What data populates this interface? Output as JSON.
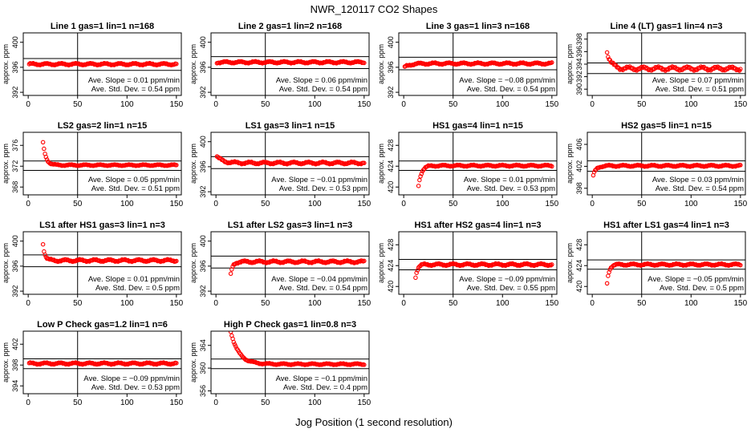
{
  "page": {
    "title": "NWR_120117  CO2 Shapes",
    "xlabel": "Jog Position (1 second resolution)"
  },
  "style": {
    "point_color": "#ff0000",
    "axis_color": "#000000"
  },
  "chart_data": [
    {
      "type": "scatter",
      "title": "Line 1 gas=1 lin=1 n=168",
      "ylabel": "approx. ppm",
      "xlim": [
        -5,
        155
      ],
      "ylim": [
        391.5,
        401.5
      ],
      "xticks": [
        0,
        50,
        100,
        150
      ],
      "yticks": [
        392,
        396,
        400
      ],
      "hlines": [
        397.4,
        395.5
      ],
      "vline": 50,
      "slope": "Ave. Slope = 0.01  ppm/min",
      "stddev": "Ave. Std. Dev. = 0.54  ppm",
      "series": [
        {
          "name": "CO2",
          "x_start": 1,
          "x_end": 150,
          "x_step": 1,
          "baseline": 396.5,
          "noise": 0.15,
          "transient": null
        }
      ]
    },
    {
      "type": "scatter",
      "title": "Line 2 gas=1 lin=2 n=168",
      "ylabel": "approx. ppm",
      "xlim": [
        -5,
        155
      ],
      "ylim": [
        391.5,
        401.5
      ],
      "xticks": [
        0,
        50,
        100,
        150
      ],
      "yticks": [
        392,
        396,
        400
      ],
      "hlines": [
        397.7,
        395.8
      ],
      "vline": 50,
      "slope": "Ave. Slope = 0.06  ppm/min",
      "stddev": "Ave. Std. Dev. = 0.54  ppm",
      "series": [
        {
          "name": "CO2",
          "x_start": 1,
          "x_end": 150,
          "x_step": 1,
          "baseline": 396.8,
          "noise": 0.15,
          "transient": null
        }
      ]
    },
    {
      "type": "scatter",
      "title": "Line 3 gas=1 lin=3 n=168",
      "ylabel": "approx. ppm",
      "xlim": [
        -5,
        155
      ],
      "ylim": [
        391.5,
        401.5
      ],
      "xticks": [
        0,
        50,
        100,
        150
      ],
      "yticks": [
        392,
        396,
        400
      ],
      "hlines": [
        397.6,
        395.6
      ],
      "vline": 50,
      "slope": "Ave. Slope = −0.08  ppm/min",
      "stddev": "Ave. Std. Dev. = 0.54  ppm",
      "series": [
        {
          "name": "CO2",
          "x_start": 1,
          "x_end": 150,
          "x_step": 1,
          "baseline": 396.6,
          "noise": 0.15,
          "transient": {
            "start": 396.0,
            "decay": 5
          }
        }
      ]
    },
    {
      "type": "scatter",
      "title": "Line 4 (LT) gas=1 lin=4 n=3",
      "ylabel": "approx. ppm",
      "xlim": [
        -5,
        155
      ],
      "ylim": [
        389.0,
        399.0
      ],
      "xticks": [
        0,
        50,
        100,
        150
      ],
      "yticks": [
        390,
        392,
        394,
        396,
        398
      ],
      "hlines": [
        394.2,
        392.5
      ],
      "vline": 50,
      "slope": "Ave. Slope = 0.07  ppm/min",
      "stddev": "Ave. Std. Dev. = 0.51  ppm",
      "series": [
        {
          "name": "CO2",
          "x_start": 15,
          "x_end": 150,
          "x_step": 1,
          "baseline": 393.3,
          "noise": 0.3,
          "transient": {
            "start": 396.0,
            "decay": 4
          }
        }
      ]
    },
    {
      "type": "scatter",
      "title": "LS2 gas=2 lin=1 n=15",
      "ylabel": "approx. ppm",
      "xlim": [
        -5,
        155
      ],
      "ylim": [
        366.5,
        378.5
      ],
      "xticks": [
        0,
        50,
        100,
        150
      ],
      "yticks": [
        368,
        372,
        376
      ],
      "hlines": [
        373.0,
        371.2
      ],
      "vline": 50,
      "slope": "Ave. Slope = 0.05  ppm/min",
      "stddev": "Ave. Std. Dev. = 0.51  ppm",
      "series": [
        {
          "name": "CO2",
          "x_start": 15,
          "x_end": 150,
          "x_step": 1,
          "baseline": 372.2,
          "noise": 0.12,
          "transient": {
            "start": 376.5,
            "decay": 3
          }
        }
      ]
    },
    {
      "type": "scatter",
      "title": "LS1 gas=3 lin=1 n=15",
      "ylabel": "approx. ppm",
      "xlim": [
        -5,
        155
      ],
      "ylim": [
        391.5,
        401.5
      ],
      "xticks": [
        0,
        50,
        100,
        150
      ],
      "yticks": [
        392,
        396,
        400
      ],
      "hlines": [
        397.6,
        395.7
      ],
      "vline": 50,
      "slope": "Ave. Slope = −0.01  ppm/min",
      "stddev": "Ave. Std. Dev. = 0.53  ppm",
      "series": [
        {
          "name": "CO2",
          "x_start": 1,
          "x_end": 150,
          "x_step": 1,
          "baseline": 396.6,
          "noise": 0.18,
          "transient": {
            "start": 397.6,
            "decay": 6
          }
        }
      ]
    },
    {
      "type": "scatter",
      "title": "HS1 gas=4 lin=1 n=15",
      "ylabel": "approx. ppm",
      "xlim": [
        -5,
        155
      ],
      "ylim": [
        418.5,
        430.5
      ],
      "xticks": [
        0,
        50,
        100,
        150
      ],
      "yticks": [
        420,
        424,
        428
      ],
      "hlines": [
        425.0,
        423.2
      ],
      "vline": 50,
      "slope": "Ave. Slope = 0.01  ppm/min",
      "stddev": "Ave. Std. Dev. = 0.53  ppm",
      "series": [
        {
          "name": "CO2",
          "x_start": 15,
          "x_end": 150,
          "x_step": 1,
          "baseline": 424.1,
          "noise": 0.15,
          "transient": {
            "start": 420.3,
            "decay": 3
          }
        }
      ]
    },
    {
      "type": "scatter",
      "title": "HS2 gas=5 lin=1 n=15",
      "ylabel": "approx. ppm",
      "xlim": [
        -5,
        155
      ],
      "ylim": [
        396.8,
        408.2
      ],
      "xticks": [
        0,
        50,
        100,
        150
      ],
      "yticks": [
        398,
        402,
        406
      ],
      "hlines": [
        403.0,
        401.1
      ],
      "vline": 50,
      "slope": "Ave. Slope = 0.03  ppm/min",
      "stddev": "Ave. Std. Dev. = 0.54  ppm",
      "series": [
        {
          "name": "CO2",
          "x_start": 1,
          "x_end": 150,
          "x_step": 1,
          "baseline": 402.1,
          "noise": 0.15,
          "transient": {
            "start": 400.3,
            "decay": 3
          }
        }
      ]
    },
    {
      "type": "scatter",
      "title": "LS1 after HS1 gas=3 lin=1 n=3",
      "ylabel": "approx. ppm",
      "xlim": [
        -5,
        155
      ],
      "ylim": [
        391.5,
        401.5
      ],
      "xticks": [
        0,
        50,
        100,
        150
      ],
      "yticks": [
        392,
        396,
        400
      ],
      "hlines": [
        397.8,
        395.9
      ],
      "vline": 50,
      "slope": "Ave. Slope = 0.01  ppm/min",
      "stddev": "Ave. Std. Dev. = 0.5  ppm",
      "series": [
        {
          "name": "CO2",
          "x_start": 15,
          "x_end": 150,
          "x_step": 1,
          "baseline": 396.9,
          "noise": 0.18,
          "transient": {
            "start": 399.6,
            "decay": 2
          }
        }
      ]
    },
    {
      "type": "scatter",
      "title": "LS1 after LS2 gas=3 lin=1 n=3",
      "ylabel": "approx. ppm",
      "xlim": [
        -5,
        155
      ],
      "ylim": [
        391.5,
        401.5
      ],
      "xticks": [
        0,
        50,
        100,
        150
      ],
      "yticks": [
        392,
        396,
        400
      ],
      "hlines": [
        397.6,
        395.7
      ],
      "vline": 50,
      "slope": "Ave. Slope = −0.04  ppm/min",
      "stddev": "Ave. Std. Dev. = 0.54  ppm",
      "series": [
        {
          "name": "CO2",
          "x_start": 15,
          "x_end": 150,
          "x_step": 1,
          "baseline": 396.7,
          "noise": 0.18,
          "transient": {
            "start": 394.6,
            "decay": 2
          }
        }
      ]
    },
    {
      "type": "scatter",
      "title": "HS1 after HS2 gas=4 lin=1 n=3",
      "ylabel": "approx. ppm",
      "xlim": [
        -5,
        155
      ],
      "ylim": [
        418.5,
        430.5
      ],
      "xticks": [
        0,
        50,
        100,
        150
      ],
      "yticks": [
        420,
        424,
        428
      ],
      "hlines": [
        425.2,
        423.2
      ],
      "vline": 50,
      "slope": "Ave. Slope = −0.09  ppm/min",
      "stddev": "Ave. Std. Dev. = 0.55  ppm",
      "series": [
        {
          "name": "CO2",
          "x_start": 12,
          "x_end": 150,
          "x_step": 1,
          "baseline": 424.2,
          "noise": 0.2,
          "transient": {
            "start": 421.8,
            "decay": 2
          }
        }
      ]
    },
    {
      "type": "scatter",
      "title": "HS1 after LS1 gas=4 lin=1 n=3",
      "ylabel": "approx. ppm",
      "xlim": [
        -5,
        155
      ],
      "ylim": [
        418.5,
        430.5
      ],
      "xticks": [
        0,
        50,
        100,
        150
      ],
      "yticks": [
        420,
        424,
        428
      ],
      "hlines": [
        425.1,
        423.3
      ],
      "vline": 50,
      "slope": "Ave. Slope = −0.05  ppm/min",
      "stddev": "Ave. Std. Dev. = 0.5  ppm",
      "series": [
        {
          "name": "CO2",
          "x_start": 15,
          "x_end": 150,
          "x_step": 1,
          "baseline": 424.2,
          "noise": 0.18,
          "transient": {
            "start": 420.6,
            "decay": 2
          }
        }
      ]
    },
    {
      "type": "scatter",
      "title": "Low P Check gas=1.2 lin=1 n=6",
      "ylabel": "approx. ppm",
      "xlim": [
        -5,
        155
      ],
      "ylim": [
        392.5,
        404.5
      ],
      "xticks": [
        0,
        50,
        100,
        150
      ],
      "yticks": [
        394,
        398,
        402
      ],
      "hlines": [
        399.2,
        397.3
      ],
      "vline": 50,
      "slope": "Ave. Slope = −0.09  ppm/min",
      "stddev": "Ave. Std. Dev. = 0.53  ppm",
      "series": [
        {
          "name": "CO2",
          "x_start": 1,
          "x_end": 150,
          "x_step": 1,
          "baseline": 398.3,
          "noise": 0.18,
          "transient": null
        }
      ]
    },
    {
      "type": "scatter",
      "title": "High P Check gas=1 lin=0.8 n=3",
      "ylabel": "approx. ppm",
      "xlim": [
        -5,
        155
      ],
      "ylim": [
        355.5,
        366.5
      ],
      "xticks": [
        0,
        50,
        100,
        150
      ],
      "yticks": [
        356,
        360,
        364
      ],
      "hlines": [
        361.6,
        359.9
      ],
      "vline": 50,
      "slope": "Ave. Slope = −0.1  ppm/min",
      "stddev": "Ave. Std. Dev. = 0.4  ppm",
      "series": [
        {
          "name": "CO2",
          "x_start": 15,
          "x_end": 150,
          "x_step": 1,
          "baseline": 360.7,
          "noise": 0.12,
          "transient": {
            "start": 366.5,
            "decay": 8
          }
        }
      ]
    }
  ]
}
